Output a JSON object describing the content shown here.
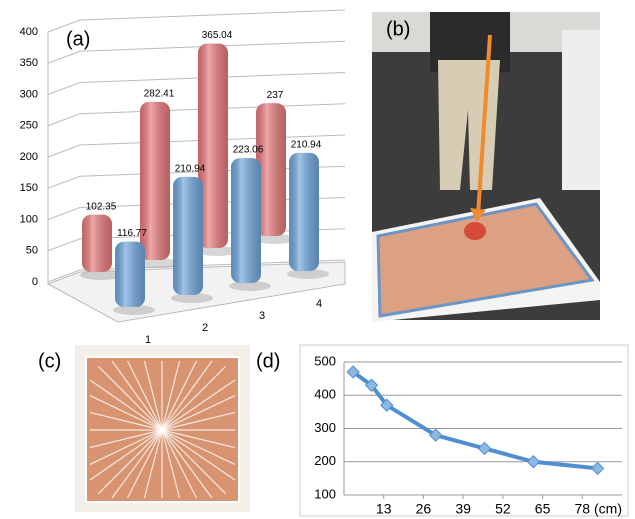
{
  "chart_data": [
    {
      "type": "bar",
      "label": "(a)",
      "categories": [
        "1",
        "2",
        "3",
        "4"
      ],
      "series": [
        {
          "color": "#e8787a",
          "values": [
            102.35,
            282.41,
            365.04,
            237
          ]
        },
        {
          "color": "#6fa6dc",
          "values": [
            116.77,
            210.94,
            223.06,
            210.94
          ]
        }
      ],
      "ylim": [
        0,
        400
      ],
      "yticks": [
        0,
        50,
        100,
        150,
        200,
        250,
        300,
        350,
        400
      ],
      "grid": true
    },
    {
      "type": "line",
      "label": "(d)",
      "xlabel": "(cm)",
      "x": [
        3,
        9,
        14,
        30,
        46,
        62,
        83
      ],
      "values": [
        470,
        430,
        370,
        280,
        240,
        200,
        180
      ],
      "color": "#4f8fcf",
      "xlim": [
        0,
        91
      ],
      "xticks": [
        13,
        26,
        39,
        52,
        65,
        78
      ],
      "ylim": [
        100,
        500
      ],
      "yticks": [
        100,
        200,
        300,
        400,
        500
      ],
      "grid": true
    }
  ],
  "panels": {
    "b": "(b)",
    "c": "(c)"
  }
}
